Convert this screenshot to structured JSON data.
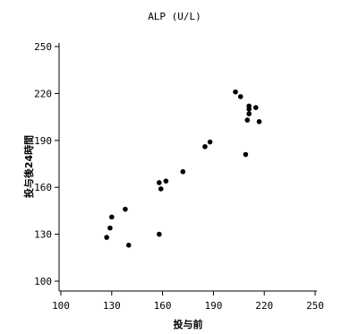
{
  "chart_data": {
    "type": "scatter",
    "title": "ALP (U/L)",
    "xlabel": "投与前",
    "ylabel": "投与後24時間",
    "xlim": [
      100,
      250
    ],
    "ylim": [
      100,
      250
    ],
    "xticks": [
      100,
      130,
      160,
      190,
      220,
      250
    ],
    "yticks": [
      100,
      130,
      160,
      190,
      220,
      250
    ],
    "grid": false,
    "marker_color": "#000000",
    "points": [
      {
        "x": 127,
        "y": 128
      },
      {
        "x": 129,
        "y": 134
      },
      {
        "x": 130,
        "y": 141
      },
      {
        "x": 138,
        "y": 146
      },
      {
        "x": 140,
        "y": 123
      },
      {
        "x": 158,
        "y": 130
      },
      {
        "x": 158,
        "y": 163
      },
      {
        "x": 159,
        "y": 159
      },
      {
        "x": 162,
        "y": 164
      },
      {
        "x": 172,
        "y": 170
      },
      {
        "x": 185,
        "y": 186
      },
      {
        "x": 188,
        "y": 189
      },
      {
        "x": 203,
        "y": 221
      },
      {
        "x": 206,
        "y": 218
      },
      {
        "x": 209,
        "y": 181
      },
      {
        "x": 210,
        "y": 203
      },
      {
        "x": 211,
        "y": 207
      },
      {
        "x": 211,
        "y": 210
      },
      {
        "x": 211,
        "y": 212
      },
      {
        "x": 215,
        "y": 211
      },
      {
        "x": 217,
        "y": 202
      }
    ]
  }
}
